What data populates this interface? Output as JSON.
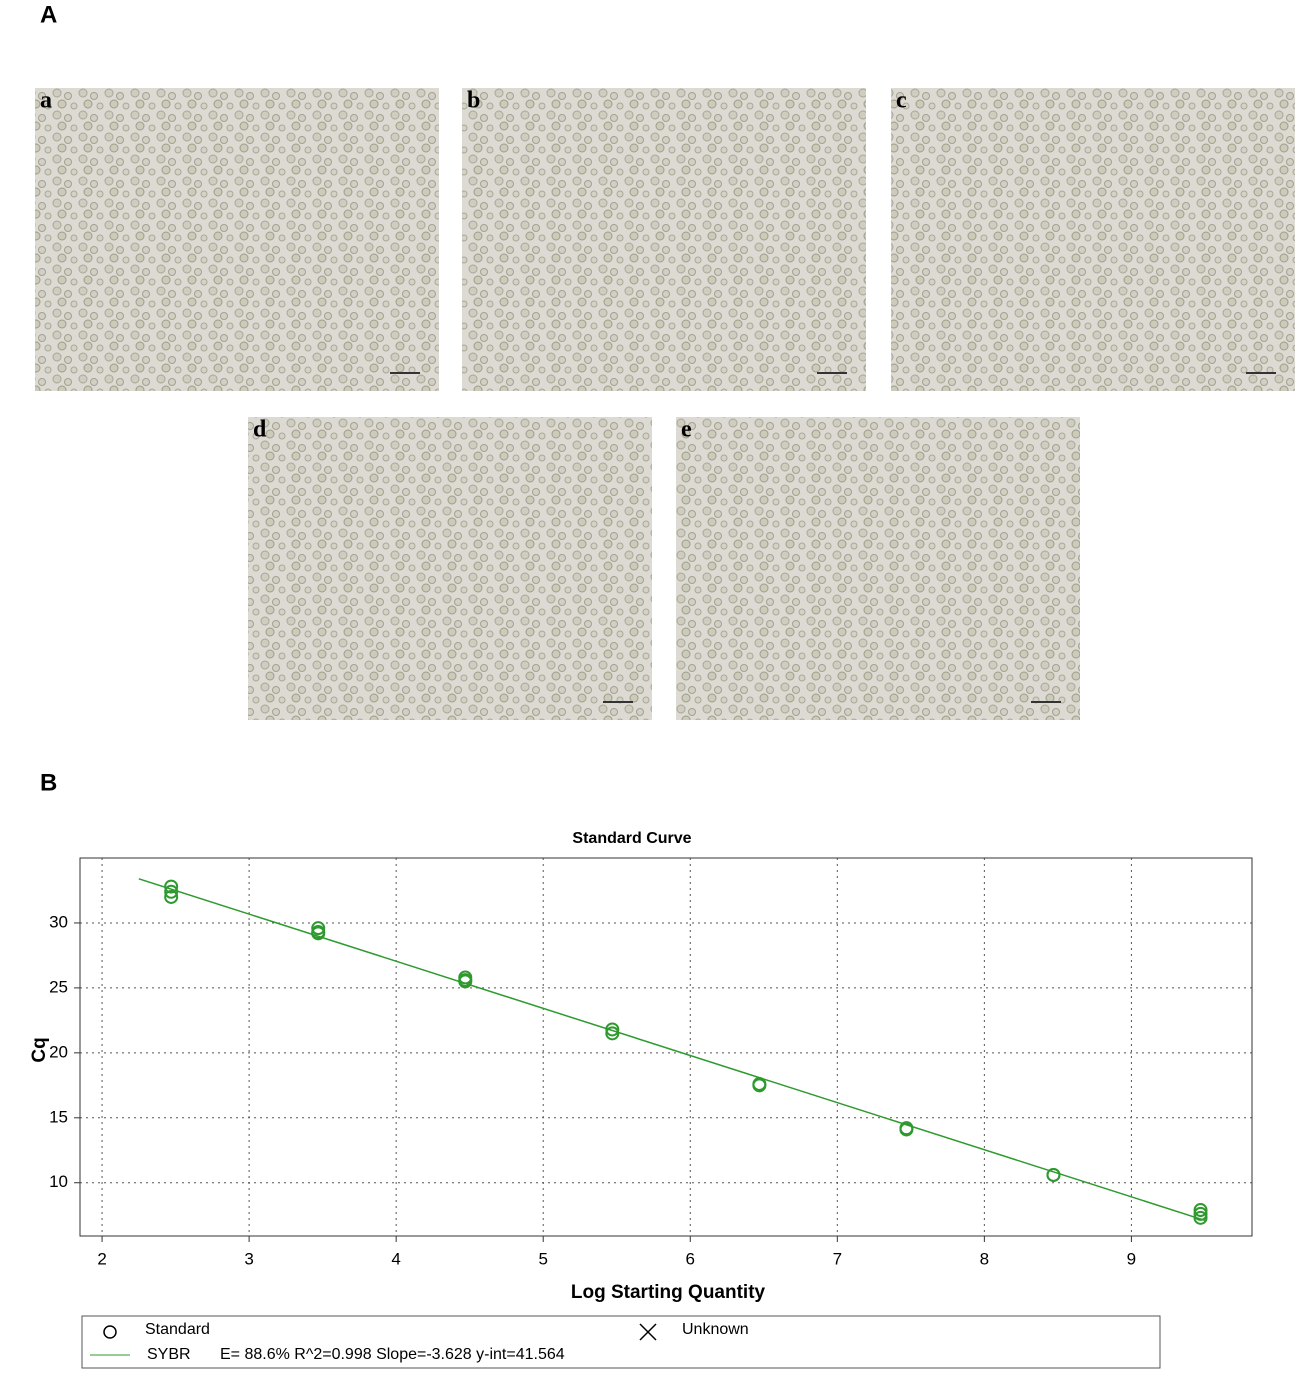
{
  "figure": {
    "panel_a": {
      "label": "A",
      "images": [
        "a",
        "b",
        "c",
        "d",
        "e"
      ]
    },
    "panel_b": {
      "label": "B"
    }
  },
  "chart_data": {
    "type": "scatter",
    "title": "Standard Curve",
    "x_label": "Log Starting Quantity",
    "y_label": "Cq",
    "xlim": [
      1.85,
      9.82
    ],
    "ylim": [
      5.9,
      35
    ],
    "xticks": [
      2,
      3,
      4,
      5,
      6,
      7,
      8,
      9
    ],
    "yticks": [
      10,
      15,
      20,
      25,
      30
    ],
    "grid": true,
    "series": [
      {
        "name": "Standard",
        "color": "#2e9a2e",
        "x": [
          2.47,
          2.47,
          2.47,
          3.47,
          3.47,
          3.47,
          4.47,
          4.47,
          4.47,
          5.47,
          5.47,
          6.47,
          6.47,
          7.47,
          7.47,
          8.47,
          8.47,
          9.47,
          9.47,
          9.47
        ],
        "values": [
          32.8,
          32.4,
          32.0,
          29.6,
          29.3,
          29.2,
          25.8,
          25.6,
          25.5,
          21.8,
          21.5,
          17.6,
          17.5,
          14.2,
          14.1,
          10.6,
          10.6,
          7.9,
          7.6,
          7.3
        ]
      },
      {
        "name": "Unknown",
        "color": "#000000",
        "x": [],
        "values": []
      },
      {
        "name": "SYBR",
        "type": "line",
        "color": "#2e9a2e",
        "x": [
          2.25,
          9.5
        ],
        "values": [
          33.4,
          7.1
        ],
        "label": "E= 88.6% R^2=0.998 Slope=-3.628 y-int=41.564"
      }
    ]
  }
}
